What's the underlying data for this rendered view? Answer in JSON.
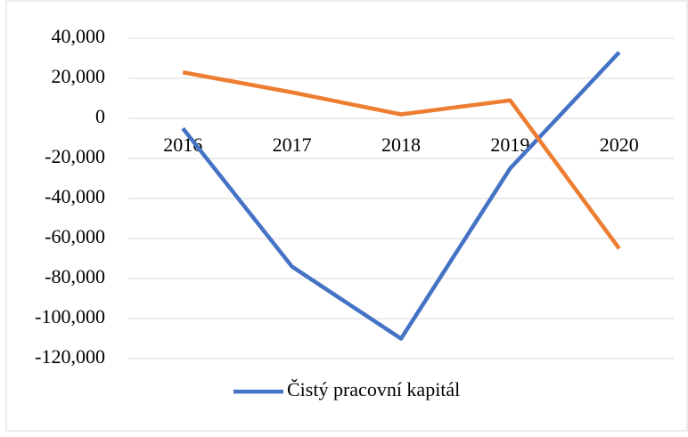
{
  "chart_data": {
    "type": "line",
    "categories": [
      "2016",
      "2017",
      "2018",
      "2019",
      "2020"
    ],
    "series": [
      {
        "name": "Čistý pracovní kapitál",
        "color": "#4472c4",
        "values": [
          -5000,
          -74000,
          -110000,
          -25000,
          33000
        ]
      },
      {
        "color": "#ed7d31",
        "values": [
          23000,
          13000,
          2000,
          9000,
          -65000
        ]
      }
    ],
    "ylim": [
      -120000,
      40000
    ],
    "yticks": [
      {
        "value": -120000,
        "label": "-120,000"
      },
      {
        "value": -100000,
        "label": "-100,000"
      },
      {
        "value": -80000,
        "label": "-80,000"
      },
      {
        "value": -60000,
        "label": "-60,000"
      },
      {
        "value": -40000,
        "label": "-40,000"
      },
      {
        "value": -20000,
        "label": "-20,000"
      },
      0,
      {
        "value": 20000,
        "label": "20,000"
      },
      {
        "value": 40000,
        "label": "40,000"
      }
    ],
    "grid": true,
    "legend": "bottom"
  }
}
